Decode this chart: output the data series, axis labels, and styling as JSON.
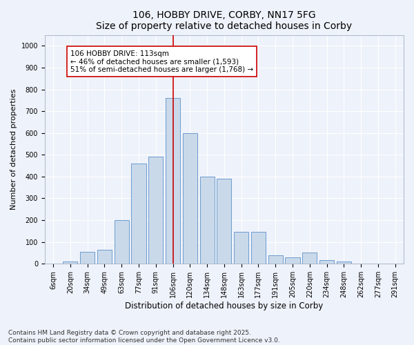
{
  "title": "106, HOBBY DRIVE, CORBY, NN17 5FG",
  "subtitle": "Size of property relative to detached houses in Corby",
  "xlabel": "Distribution of detached houses by size in Corby",
  "ylabel": "Number of detached properties",
  "categories": [
    "6sqm",
    "20sqm",
    "34sqm",
    "49sqm",
    "63sqm",
    "77sqm",
    "91sqm",
    "106sqm",
    "120sqm",
    "134sqm",
    "148sqm",
    "163sqm",
    "177sqm",
    "191sqm",
    "205sqm",
    "220sqm",
    "234sqm",
    "248sqm",
    "262sqm",
    "277sqm",
    "291sqm"
  ],
  "values": [
    0,
    10,
    55,
    65,
    200,
    460,
    490,
    760,
    600,
    400,
    390,
    145,
    145,
    40,
    30,
    50,
    15,
    10,
    0,
    0,
    0
  ],
  "bar_color": "#c9d9ea",
  "bar_edge_color": "#5b8fc9",
  "vline_x": 7.0,
  "vline_color": "#cc0000",
  "annotation_text": "106 HOBBY DRIVE: 113sqm\n← 46% of detached houses are smaller (1,593)\n51% of semi-detached houses are larger (1,768) →",
  "annotation_box_color": "white",
  "annotation_box_edge": "#cc0000",
  "ylim": [
    0,
    1050
  ],
  "yticks": [
    0,
    100,
    200,
    300,
    400,
    500,
    600,
    700,
    800,
    900,
    1000
  ],
  "bg_color": "#eef2fa",
  "grid_color": "white",
  "footer": "Contains HM Land Registry data © Crown copyright and database right 2025.\nContains public sector information licensed under the Open Government Licence v3.0.",
  "title_fontsize": 10,
  "xlabel_fontsize": 8.5,
  "ylabel_fontsize": 8,
  "tick_fontsize": 7,
  "annotation_fontsize": 7.5,
  "footer_fontsize": 6.5
}
